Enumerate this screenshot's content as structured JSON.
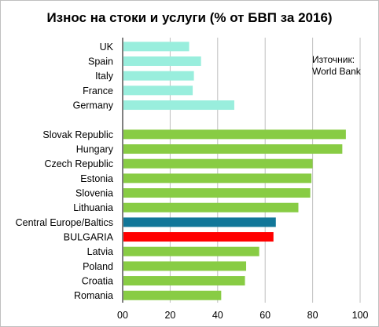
{
  "chart_data": {
    "type": "bar",
    "orientation": "horizontal",
    "title": "Износ на стоки и услуги (% от БВП за 2016)",
    "annotation": [
      "Източник:",
      "World Bank"
    ],
    "xlim": [
      0,
      100
    ],
    "xticks": [
      "00",
      "20",
      "40",
      "60",
      "80",
      "100"
    ],
    "grid": true,
    "groups": [
      {
        "categories": [
          "UK",
          "Spain",
          "Italy",
          "France",
          "Germany"
        ],
        "values": [
          28,
          33,
          30,
          29.5,
          47
        ],
        "colors": [
          "#99eedd",
          "#99eedd",
          "#99eedd",
          "#99eedd",
          "#99eedd"
        ]
      },
      {
        "categories": [
          "Slovak Republic",
          "Hungary",
          "Czech Republic",
          "Estonia",
          "Slovenia",
          "Lithuania",
          "Central Europe/Baltics",
          "BULGARIA",
          "Latvia",
          "Poland",
          "Croatia",
          "Romania"
        ],
        "values": [
          94,
          92.5,
          80,
          79.5,
          79,
          74,
          64.5,
          63.5,
          57.5,
          52,
          51.5,
          41.5
        ],
        "colors": [
          "#88cc44",
          "#88cc44",
          "#88cc44",
          "#88cc44",
          "#88cc44",
          "#88cc44",
          "#117799",
          "#ff0000",
          "#88cc44",
          "#88cc44",
          "#88cc44",
          "#88cc44"
        ]
      }
    ]
  }
}
